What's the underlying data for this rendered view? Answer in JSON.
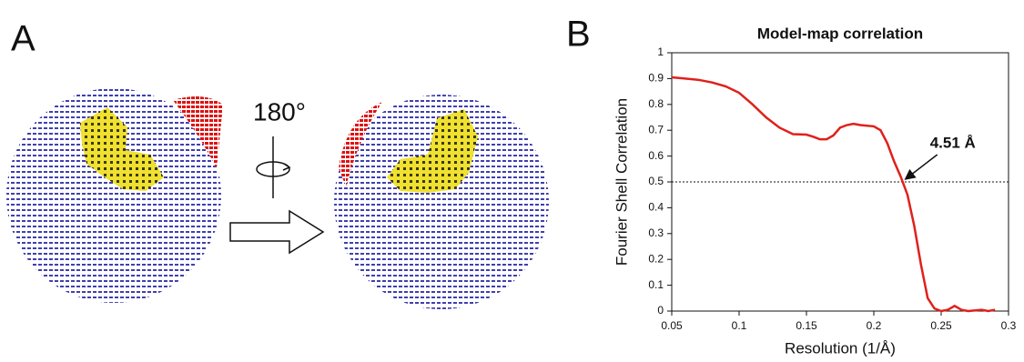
{
  "panels": {
    "a_label": "A",
    "b_label": "B",
    "rotation": "180°"
  },
  "chart_data": {
    "type": "line",
    "title": "Model-map correlation",
    "x_label": "Resolution (1/Å)",
    "y_label": "Fourier Shell Correlation",
    "x": [
      0.05,
      0.06,
      0.07,
      0.08,
      0.09,
      0.1,
      0.11,
      0.12,
      0.13,
      0.14,
      0.15,
      0.155,
      0.16,
      0.165,
      0.17,
      0.175,
      0.18,
      0.185,
      0.19,
      0.2,
      0.205,
      0.21,
      0.215,
      0.22,
      0.225,
      0.23,
      0.235,
      0.24,
      0.245,
      0.25,
      0.255,
      0.26,
      0.265,
      0.27,
      0.28,
      0.285,
      0.29
    ],
    "values": [
      0.905,
      0.9,
      0.895,
      0.885,
      0.87,
      0.845,
      0.8,
      0.75,
      0.71,
      0.685,
      0.683,
      0.675,
      0.665,
      0.665,
      0.68,
      0.71,
      0.72,
      0.725,
      0.72,
      0.715,
      0.7,
      0.65,
      0.58,
      0.52,
      0.45,
      0.33,
      0.18,
      0.05,
      0.01,
      0.0,
      0.005,
      0.02,
      0.005,
      0.0,
      0.005,
      0.0,
      0.005
    ],
    "color": "#e0201b",
    "threshold": 0.5,
    "annotation": "4.51 Å",
    "xlim": [
      0.05,
      0.3
    ],
    "xticks": [
      0.05,
      0.1,
      0.15,
      0.2,
      0.25,
      0.3
    ],
    "ylim": [
      0,
      1
    ],
    "yticks": [
      0,
      0.1,
      0.2,
      0.3,
      0.4,
      0.5,
      0.6,
      0.7,
      0.8,
      0.9,
      1
    ]
  }
}
